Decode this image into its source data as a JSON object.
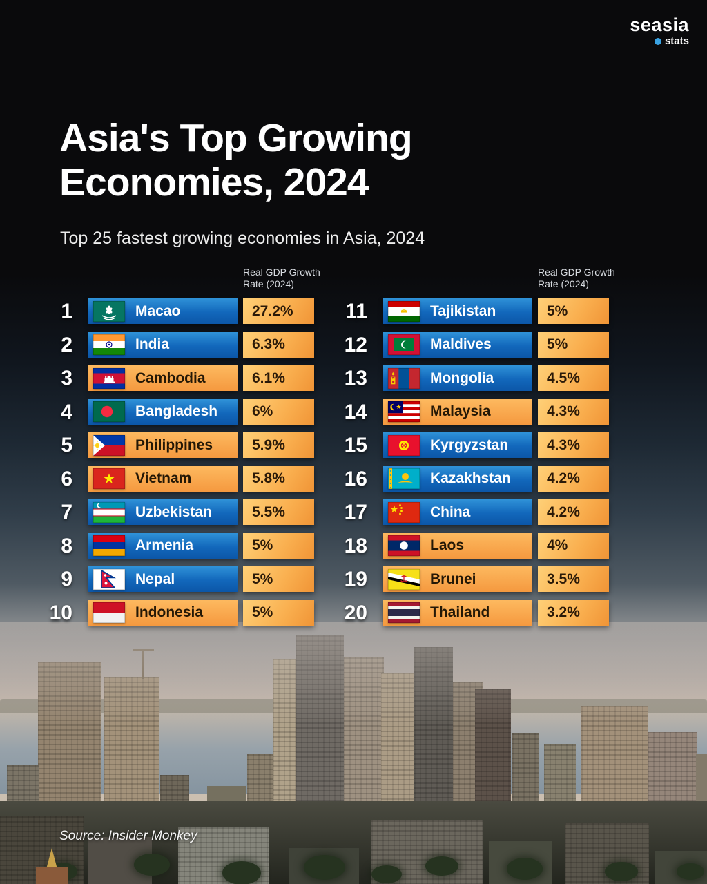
{
  "logo": {
    "brand": "seasia",
    "sub": "stats",
    "dot_color": "#3aa3e3"
  },
  "title": {
    "line1": "Asia's Top Growing",
    "line2": "Economies, 2024"
  },
  "subtitle": "Top 25 fastest growing economies in Asia, 2024",
  "value_header": {
    "line1": "Real GDP Growth",
    "line2": "Rate (2024)"
  },
  "source": "Source: Insider Monkey",
  "colors": {
    "row_blue": "#1267bb",
    "row_orange": "#f5993f",
    "value_cell_orange": "#f9ae4e",
    "dark_text": "#2b1a08",
    "rank_text": "#ffffff"
  },
  "chart_data": {
    "type": "table",
    "title": "Asia's Top Growing Economies, 2024",
    "subtitle": "Top 25 fastest growing economies in Asia, 2024",
    "value_label": "Real GDP Growth Rate (2024)",
    "unit": "percent",
    "layout": {
      "columns": 2,
      "rows_per_column": 10
    },
    "source": "Source: Insider Monkey",
    "entries": [
      {
        "rank": 1,
        "country": "Macao",
        "value": 27.2,
        "display": "27.2%",
        "flag": "macao",
        "variant": "blue"
      },
      {
        "rank": 2,
        "country": "India",
        "value": 6.3,
        "display": "6.3%",
        "flag": "india",
        "variant": "blue"
      },
      {
        "rank": 3,
        "country": "Cambodia",
        "value": 6.1,
        "display": "6.1%",
        "flag": "cambodia",
        "variant": "orange"
      },
      {
        "rank": 4,
        "country": "Bangladesh",
        "value": 6.0,
        "display": "6%",
        "flag": "bangladesh",
        "variant": "blue"
      },
      {
        "rank": 5,
        "country": "Philippines",
        "value": 5.9,
        "display": "5.9%",
        "flag": "philippines",
        "variant": "orange"
      },
      {
        "rank": 6,
        "country": "Vietnam",
        "value": 5.8,
        "display": "5.8%",
        "flag": "vietnam",
        "variant": "orange"
      },
      {
        "rank": 7,
        "country": "Uzbekistan",
        "value": 5.5,
        "display": "5.5%",
        "flag": "uzbekistan",
        "variant": "blue"
      },
      {
        "rank": 8,
        "country": "Armenia",
        "value": 5.0,
        "display": "5%",
        "flag": "armenia",
        "variant": "blue"
      },
      {
        "rank": 9,
        "country": "Nepal",
        "value": 5.0,
        "display": "5%",
        "flag": "nepal",
        "variant": "blue"
      },
      {
        "rank": 10,
        "country": "Indonesia",
        "value": 5.0,
        "display": "5%",
        "flag": "indonesia",
        "variant": "orange"
      },
      {
        "rank": 11,
        "country": "Tajikistan",
        "value": 5.0,
        "display": "5%",
        "flag": "tajikistan",
        "variant": "blue"
      },
      {
        "rank": 12,
        "country": "Maldives",
        "value": 5.0,
        "display": "5%",
        "flag": "maldives",
        "variant": "blue"
      },
      {
        "rank": 13,
        "country": "Mongolia",
        "value": 4.5,
        "display": "4.5%",
        "flag": "mongolia",
        "variant": "blue"
      },
      {
        "rank": 14,
        "country": "Malaysia",
        "value": 4.3,
        "display": "4.3%",
        "flag": "malaysia",
        "variant": "orange"
      },
      {
        "rank": 15,
        "country": "Kyrgyzstan",
        "value": 4.3,
        "display": "4.3%",
        "flag": "kyrgyzstan",
        "variant": "blue"
      },
      {
        "rank": 16,
        "country": "Kazakhstan",
        "value": 4.2,
        "display": "4.2%",
        "flag": "kazakhstan",
        "variant": "blue"
      },
      {
        "rank": 17,
        "country": "China",
        "value": 4.2,
        "display": "4.2%",
        "flag": "china",
        "variant": "blue"
      },
      {
        "rank": 18,
        "country": "Laos",
        "value": 4.0,
        "display": "4%",
        "flag": "laos",
        "variant": "orange"
      },
      {
        "rank": 19,
        "country": "Brunei",
        "value": 3.5,
        "display": "3.5%",
        "flag": "brunei",
        "variant": "orange"
      },
      {
        "rank": 20,
        "country": "Thailand",
        "value": 3.2,
        "display": "3.2%",
        "flag": "thailand",
        "variant": "orange"
      }
    ]
  }
}
